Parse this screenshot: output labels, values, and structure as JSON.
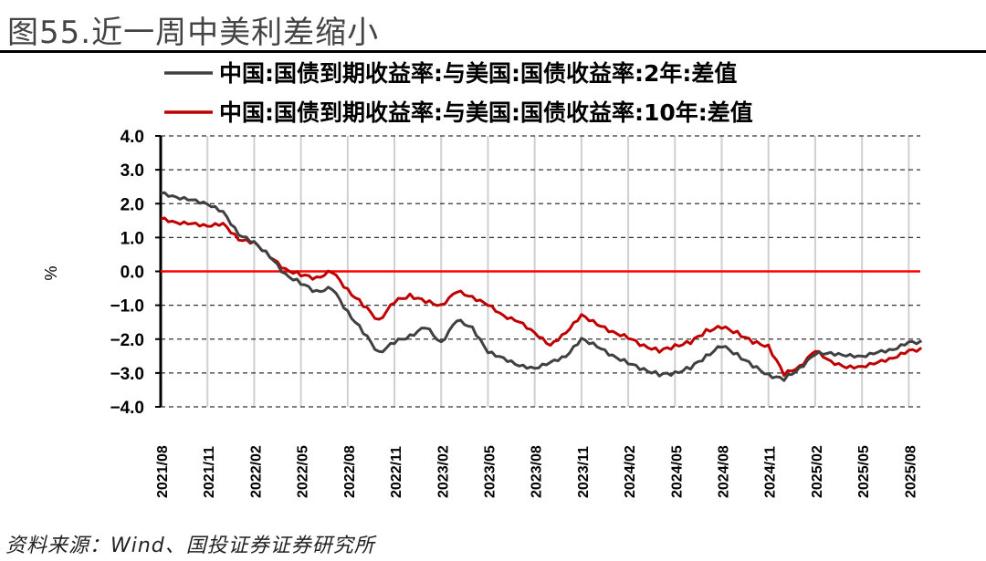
{
  "title": "图55.近一周中美利差缩小",
  "source": "资料来源：Wind、国投证券证券研究所",
  "chart_data": {
    "type": "line",
    "title": "近一周中美利差缩小",
    "ylabel": "%",
    "xlabel": "",
    "ylim": [
      -4.0,
      4.0
    ],
    "yticks": [
      "4.0",
      "3.0",
      "2.0",
      "1.0",
      "0.0",
      "-1.0",
      "-2.0",
      "-3.0",
      "-4.0"
    ],
    "ytick_values": [
      4,
      3,
      2,
      1,
      0,
      -1,
      -2,
      -3,
      -4
    ],
    "xtick_labels": [
      "2021/08",
      "2021/11",
      "2022/02",
      "2022/05",
      "2022/08",
      "2022/11",
      "2023/02",
      "2023/05",
      "2023/08",
      "2023/11",
      "2024/02",
      "2024/05",
      "2024/08",
      "2024/11",
      "2025/02",
      "2025/05",
      "2025/08"
    ],
    "x_months_from_2021_08": [
      0,
      1,
      2,
      3,
      4,
      5,
      6,
      7,
      8,
      9,
      10,
      11,
      12,
      13,
      14,
      15,
      16,
      17,
      18,
      19,
      20,
      21,
      22,
      23,
      24,
      25,
      26,
      27,
      28,
      29,
      30,
      31,
      32,
      33,
      34,
      35,
      36,
      37,
      38,
      39,
      40,
      41,
      42,
      43,
      44,
      45,
      46,
      47,
      48,
      49
    ],
    "grid": "horizontal dashed, vertical solid light",
    "legend_position": "top-center",
    "reference_line": {
      "value": 0,
      "color": "#ff0000"
    },
    "series": [
      {
        "name": "中国:国债到期收益率:与美国:国债收益率:2年:差值",
        "color": "#404040",
        "values": [
          2.3,
          2.2,
          2.1,
          2.0,
          1.75,
          1.1,
          0.85,
          0.45,
          -0.1,
          -0.35,
          -0.6,
          -0.5,
          -1.2,
          -1.8,
          -2.4,
          -2.1,
          -1.9,
          -1.65,
          -2.1,
          -1.45,
          -1.65,
          -2.4,
          -2.55,
          -2.8,
          -2.85,
          -2.7,
          -2.5,
          -2.0,
          -2.2,
          -2.5,
          -2.7,
          -2.9,
          -3.05,
          -3.0,
          -2.85,
          -2.5,
          -2.2,
          -2.45,
          -2.8,
          -3.05,
          -3.2,
          -2.85,
          -2.45,
          -2.4,
          -2.5,
          -2.5,
          -2.4,
          -2.3,
          -2.1,
          -2.1
        ]
      },
      {
        "name": "中国:国债到期收益率:与美国:国债收益率:10年:差值",
        "color": "#c00000",
        "values": [
          1.55,
          1.45,
          1.4,
          1.35,
          1.4,
          0.95,
          0.85,
          0.45,
          0.05,
          -0.1,
          -0.2,
          0.0,
          -0.55,
          -1.0,
          -1.45,
          -0.9,
          -0.7,
          -0.9,
          -1.0,
          -0.6,
          -0.75,
          -1.0,
          -1.3,
          -1.5,
          -1.8,
          -2.2,
          -1.8,
          -1.3,
          -1.55,
          -1.8,
          -1.95,
          -2.2,
          -2.35,
          -2.2,
          -2.1,
          -1.75,
          -1.65,
          -1.8,
          -2.1,
          -2.2,
          -3.05,
          -2.8,
          -2.35,
          -2.65,
          -2.85,
          -2.8,
          -2.7,
          -2.55,
          -2.35,
          -2.3
        ]
      }
    ]
  }
}
